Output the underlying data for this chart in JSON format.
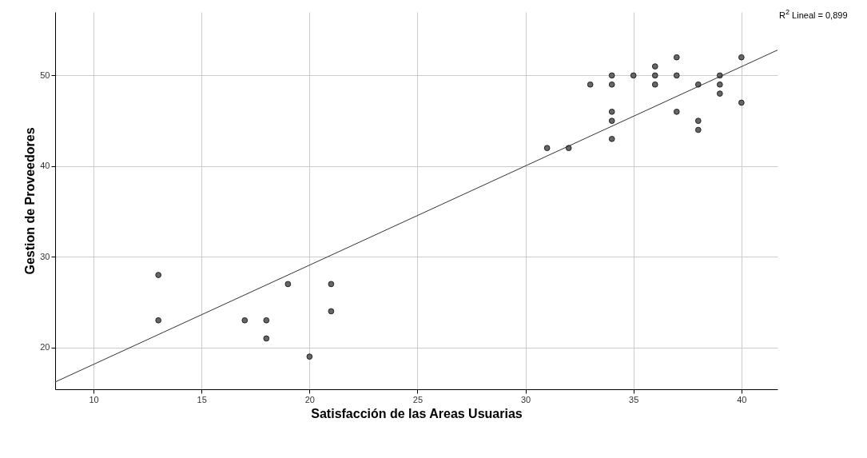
{
  "chart_data": {
    "type": "scatter",
    "xlabel": "Satisfacción de las Areas Usuarias",
    "ylabel": "Gestion de Proveedores",
    "series": [
      {
        "color": "#666666",
        "marker": "circle",
        "x": [
          13,
          13,
          17,
          18,
          18,
          19,
          20,
          21,
          21,
          31,
          32,
          33,
          34,
          34,
          34,
          34,
          34,
          35,
          36,
          36,
          36,
          37,
          37,
          37,
          38,
          38,
          38,
          39,
          39,
          39,
          40,
          40
        ],
        "values": [
          28,
          23,
          23,
          23,
          21,
          27,
          19,
          27,
          24,
          42,
          42,
          49,
          50,
          49,
          46,
          45,
          43,
          50,
          51,
          50,
          49,
          52,
          50,
          46,
          49,
          45,
          44,
          50,
          49,
          48,
          52,
          47
        ]
      },
      {
        "type": "line",
        "color": "#333333",
        "marker": "none",
        "x": [
          8.22,
          41.67
        ],
        "values": [
          16.2,
          52.8
        ]
      }
    ],
    "xlim": [
      8.22,
      41.67
    ],
    "ylim": [
      15.4,
      57
    ],
    "xticks": [
      10,
      15,
      20,
      25,
      30,
      35,
      40
    ],
    "yticks": [
      20,
      30,
      40,
      50
    ],
    "grid": true,
    "annotations": [
      "R$^{2}$ Lineal = 0,899"
    ]
  }
}
